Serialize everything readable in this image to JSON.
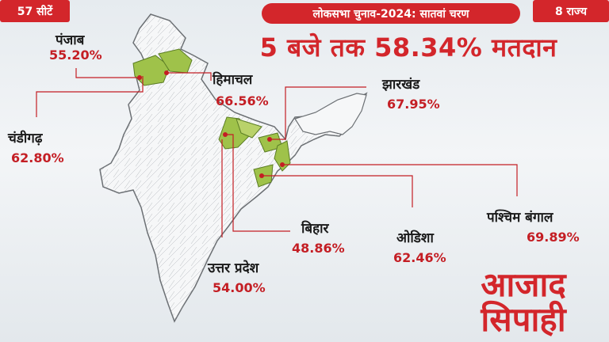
{
  "header": {
    "seats_badge": "57 सीटें",
    "phase_title": "लोकसभा चुनाव-2024: सातवां चरण",
    "states_badge": "8 राज्य",
    "headline": "5 बजे तक 58.34% मतदान"
  },
  "states": [
    {
      "name": "पंजाब",
      "turnout": "55.20%"
    },
    {
      "name": "हिमाचल",
      "turnout": "66.56%"
    },
    {
      "name": "झारखंड",
      "turnout": "67.95%"
    },
    {
      "name": "चंडीगढ़",
      "turnout": "62.80%"
    },
    {
      "name": "पश्चिम बंगाल",
      "turnout": "69.89%"
    },
    {
      "name": "बिहार",
      "turnout": "48.86%"
    },
    {
      "name": "ओडिशा",
      "turnout": "62.46%"
    },
    {
      "name": "उत्तर प्रदेश",
      "turnout": "54.00%"
    }
  ],
  "logo": {
    "line1": "आजाद",
    "line2": "सिपाही"
  },
  "colors": {
    "accent": "#d3262b",
    "highlight": "#9fc24a",
    "leader": "#c41e24"
  }
}
